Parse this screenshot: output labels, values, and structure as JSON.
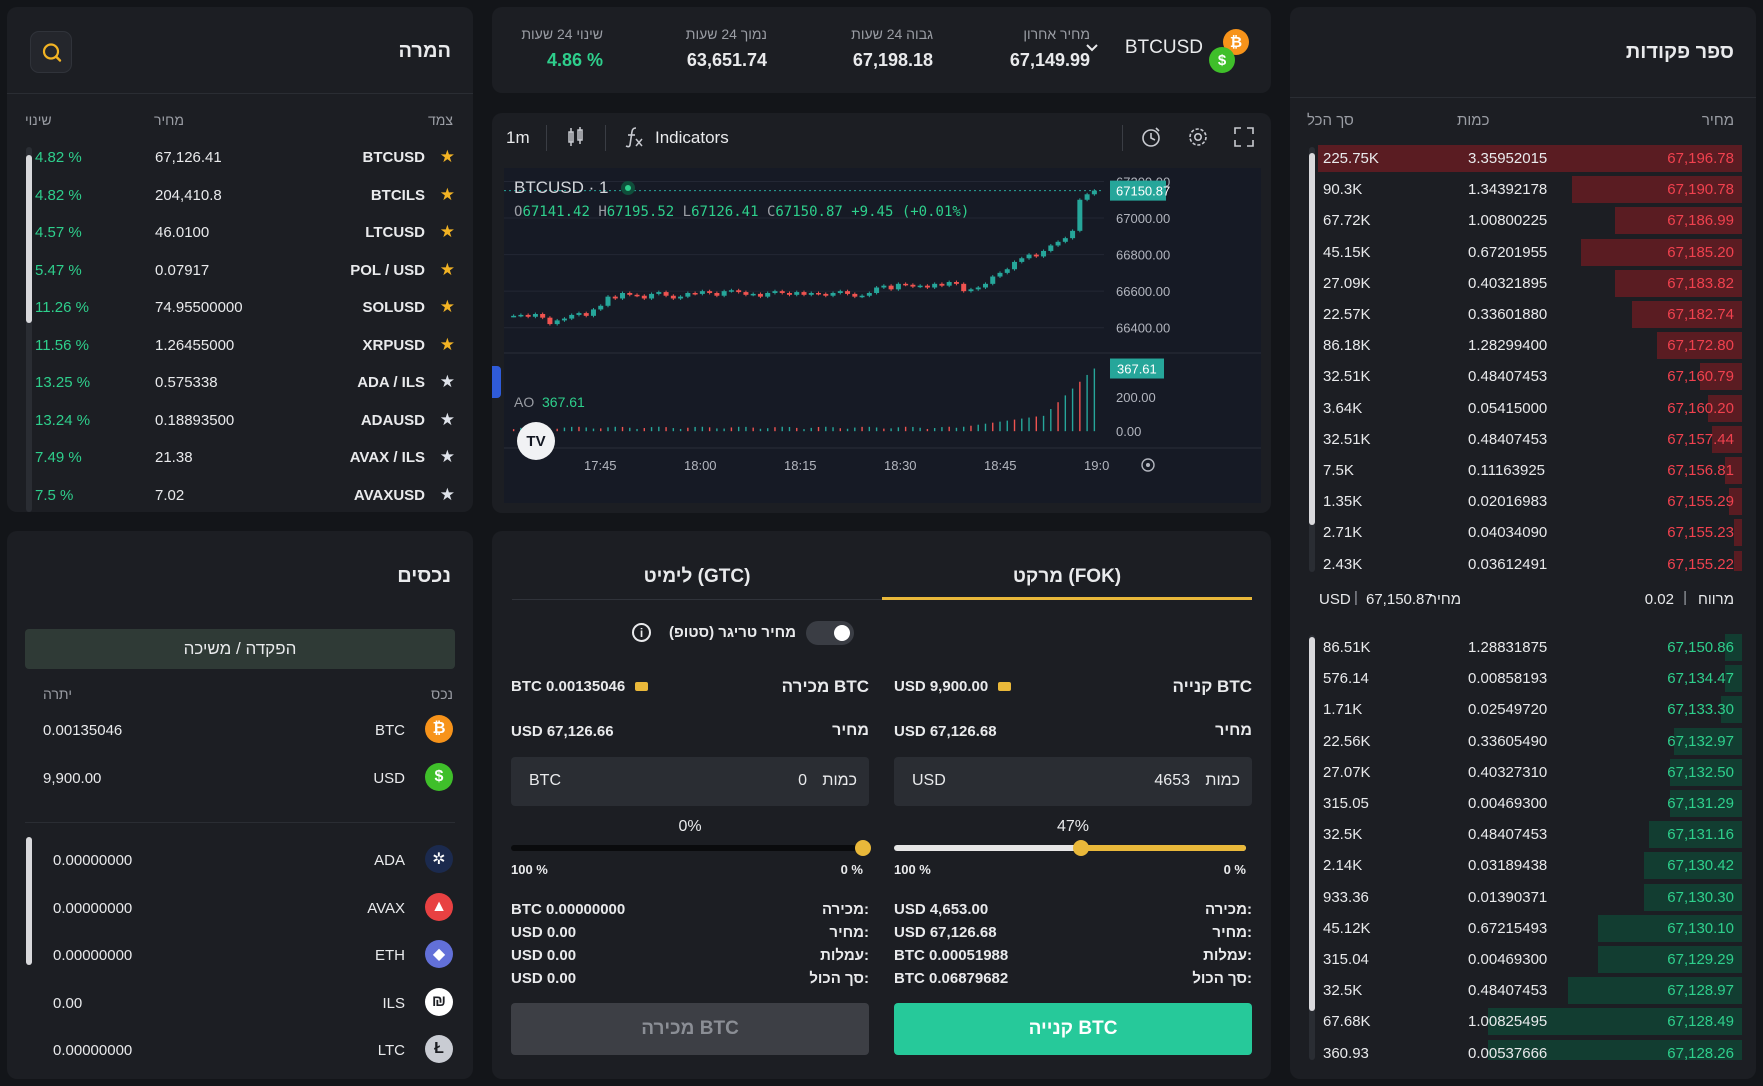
{
  "watchlist": {
    "title": "המרה",
    "col_pair": "צמד",
    "col_price": "מחיר",
    "col_change": "שינוי",
    "rows": [
      {
        "pair": "BTCUSD",
        "price": "67,126.41",
        "change": "4.82 %",
        "fav": true
      },
      {
        "pair": "BTCILS",
        "price": "204,410.8",
        "change": "4.82 %",
        "fav": true
      },
      {
        "pair": "LTCUSD",
        "price": "46.0100",
        "change": "4.57 %",
        "fav": true
      },
      {
        "pair": "POL / USD",
        "price": "0.07917",
        "change": "5.47 %",
        "fav": true
      },
      {
        "pair": "SOLUSD",
        "price": "74.95500000",
        "change": "11.26 %",
        "fav": true
      },
      {
        "pair": "XRPUSD",
        "price": "1.26455000",
        "change": "11.56 %",
        "fav": true
      },
      {
        "pair": "ADA / ILS",
        "price": "0.575338",
        "change": "13.25 %",
        "fav": false
      },
      {
        "pair": "ADAUSD",
        "price": "0.18893500",
        "change": "13.24 %",
        "fav": false
      },
      {
        "pair": "AVAX / ILS",
        "price": "21.38",
        "change": "7.49 %",
        "fav": false
      },
      {
        "pair": "AVAXUSD",
        "price": "7.02",
        "change": "7.5 %",
        "fav": false
      }
    ]
  },
  "assets": {
    "title": "נכסים",
    "deposit_label": "הפקדה / משיכה",
    "col_asset": "נכס",
    "col_balance": "יתרה",
    "main": [
      {
        "symbol": "BTC",
        "balance": "0.00135046",
        "icon": "bitcoin-icon",
        "color": "#f7931a",
        "glyph": "₿"
      },
      {
        "symbol": "USD",
        "balance": "9,900.00",
        "icon": "dollar-icon",
        "color": "#3fbf2a",
        "glyph": "$"
      }
    ],
    "others": [
      {
        "symbol": "ADA",
        "balance": "0.00000000",
        "icon": "cardano-icon",
        "color": "#1b2a4e",
        "glyph": "✲"
      },
      {
        "symbol": "AVAX",
        "balance": "0.00000000",
        "icon": "avalanche-icon",
        "color": "#e84142",
        "glyph": "▲"
      },
      {
        "symbol": "ETH",
        "balance": "0.00000000",
        "icon": "ethereum-icon",
        "color": "#6270d8",
        "glyph": "◆"
      },
      {
        "symbol": "ILS",
        "balance": "0.00",
        "icon": "shekel-icon",
        "color": "#ffffff",
        "glyph": "₪"
      },
      {
        "symbol": "LTC",
        "balance": "0.00000000",
        "icon": "litecoin-icon",
        "color": "#c9ccd3",
        "glyph": "Ł"
      }
    ]
  },
  "ticker": {
    "symbol": "BTCUSD",
    "last_label": "מחיר אחרון",
    "last_value": "67,149.99",
    "high_label": "גבוה 24 שעות",
    "high_value": "67,198.18",
    "low_label": "נמוך 24 שעות",
    "low_value": "63,651.74",
    "change_label": "שינוי 24 שעות",
    "change_value": "4.86 %"
  },
  "chart_toolbar": {
    "interval": "1m",
    "indicators": "Indicators"
  },
  "chart": {
    "symbol_label": "BTCUSD · 1",
    "ohlc": {
      "o_label": "O",
      "o": "67141.42",
      "h_label": "H",
      "h": "67195.52",
      "l_label": "L",
      "l": "67126.41",
      "c_label": "C",
      "c": "67150.87",
      "chg": "+9.45 (+0.01%)"
    },
    "last_price_tag": "67150.87",
    "price_ticks": [
      "67200.00",
      "67000.00",
      "66800.00",
      "66600.00",
      "66400.00"
    ],
    "osc_label": "AO",
    "osc_value": "367.61",
    "osc_tag": "367.61",
    "osc_ticks": [
      "200.00",
      "0.00"
    ],
    "time_ticks": [
      "17:45",
      "18:00",
      "18:15",
      "18:30",
      "18:45",
      "19:0"
    ],
    "logo": "TV"
  },
  "chart_data": {
    "type": "candlestick",
    "x_range": [
      "17:33",
      "18:52"
    ],
    "y_range": [
      66300,
      67230
    ],
    "close": [
      66465,
      66470,
      66460,
      66475,
      66455,
      66420,
      66440,
      66450,
      66470,
      66480,
      66465,
      66500,
      66520,
      66570,
      66560,
      66590,
      66580,
      66575,
      66560,
      66585,
      66595,
      66575,
      66560,
      66570,
      66590,
      66585,
      66600,
      66590,
      66575,
      66600,
      66605,
      66595,
      66580,
      66585,
      66570,
      66590,
      66600,
      66590,
      66580,
      66595,
      66580,
      66590,
      66585,
      66575,
      66590,
      66600,
      66585,
      66570,
      66575,
      66590,
      66620,
      66630,
      66610,
      66640,
      66635,
      66625,
      66630,
      66620,
      66640,
      66630,
      66650,
      66640,
      66600,
      66610,
      66620,
      66640,
      66680,
      66700,
      66720,
      66760,
      66780,
      66800,
      66790,
      66820,
      66850,
      66870,
      66890,
      66930,
      67100,
      67130,
      67150
    ],
    "osc": {
      "name": "AO",
      "last": 367.61,
      "range": [
        -40,
        400
      ]
    }
  },
  "order": {
    "tab_market": "מרקט (FOK)",
    "tab_limit": "לימיט (GTC)",
    "trigger_label": "מחיר טריגר (סטופ)",
    "buy": {
      "title": "קנייה BTC",
      "balance": "USD 9,900.00",
      "price_label": "מחיר",
      "price_value": "USD 67,126.68",
      "qty_label": "כמות",
      "qty_value": "4653",
      "qty_unit": "USD",
      "percent": "47%",
      "slider_fraction": 0.47,
      "min_label": "0 %",
      "max_label": "100 %",
      "sum_sell_label": "מכירה:",
      "sum_sell_value": "USD 4,653.00",
      "sum_price_label": "מחיר:",
      "sum_price_value": "USD 67,126.68",
      "sum_fee_label": "עמלות:",
      "sum_fee_value": "BTC 0.00051988",
      "sum_total_label": "סך הכול:",
      "sum_total_value": "BTC 0.06879682",
      "button": "קנייה BTC"
    },
    "sell": {
      "title": "מכירה BTC",
      "balance": "BTC 0.00135046",
      "price_label": "מחיר",
      "price_value": "USD 67,126.66",
      "qty_label": "כמות",
      "qty_value": "0",
      "qty_unit": "BTC",
      "percent": "0%",
      "slider_fraction": 0,
      "min_label": "0 %",
      "max_label": "100 %",
      "sum_sell_label": "מכירה:",
      "sum_sell_value": "BTC 0.00000000",
      "sum_price_label": "מחיר:",
      "sum_price_value": "USD 0.00",
      "sum_fee_label": "עמלות:",
      "sum_fee_value": "USD 0.00",
      "sum_total_label": "סך הכול:",
      "sum_total_value": "USD 0.00",
      "button": "מכירה BTC"
    }
  },
  "orderbook": {
    "title": "ספר פקודות",
    "col_price": "מחיר",
    "col_qty": "כמות",
    "col_total": "סך הכל",
    "spread_label": "מרווח",
    "spread_value": "0.02",
    "mid_label": "מחיר",
    "mid_value": "67,150.87",
    "mid_currency": "USD",
    "asks": [
      {
        "price": "67,196.78",
        "qty": "3.35952015",
        "total": "225.75K",
        "depth": 1.0
      },
      {
        "price": "67,190.78",
        "qty": "1.34392178",
        "total": "90.3K",
        "depth": 0.4
      },
      {
        "price": "67,186.99",
        "qty": "1.00800225",
        "total": "67.72K",
        "depth": 0.3
      },
      {
        "price": "67,185.20",
        "qty": "0.67201955",
        "total": "45.15K",
        "depth": 0.38
      },
      {
        "price": "67,183.82",
        "qty": "0.40321895",
        "total": "27.09K",
        "depth": 0.3
      },
      {
        "price": "67,182.74",
        "qty": "0.33601880",
        "total": "22.57K",
        "depth": 0.26
      },
      {
        "price": "67,172.80",
        "qty": "1.28299400",
        "total": "86.18K",
        "depth": 0.2
      },
      {
        "price": "67,160.79",
        "qty": "0.48407453",
        "total": "32.51K",
        "depth": 0.1
      },
      {
        "price": "67,160.20",
        "qty": "0.05415000",
        "total": "3.64K",
        "depth": 0.08
      },
      {
        "price": "67,157.44",
        "qty": "0.48407453",
        "total": "32.51K",
        "depth": 0.07
      },
      {
        "price": "67,156.81",
        "qty": "0.11163925",
        "total": "7.5K",
        "depth": 0.04
      },
      {
        "price": "67,155.29",
        "qty": "0.02016983",
        "total": "1.35K",
        "depth": 0.03
      },
      {
        "price": "67,155.23",
        "qty": "0.04034090",
        "total": "2.71K",
        "depth": 0.02
      },
      {
        "price": "67,155.22",
        "qty": "0.03612491",
        "total": "2.43K",
        "depth": 0.02
      }
    ],
    "bids": [
      {
        "price": "67,150.86",
        "qty": "1.28831875",
        "total": "86.51K",
        "depth": 0.04
      },
      {
        "price": "67,134.47",
        "qty": "0.00858193",
        "total": "576.14",
        "depth": 0.04
      },
      {
        "price": "67,133.30",
        "qty": "0.02549720",
        "total": "1.71K",
        "depth": 0.05
      },
      {
        "price": "67,132.97",
        "qty": "0.33605490",
        "total": "22.56K",
        "depth": 0.16
      },
      {
        "price": "67,132.50",
        "qty": "0.40327310",
        "total": "27.07K",
        "depth": 0.17
      },
      {
        "price": "67,131.29",
        "qty": "0.00469300",
        "total": "315.05",
        "depth": 0.17
      },
      {
        "price": "67,131.16",
        "qty": "0.48407453",
        "total": "32.5K",
        "depth": 0.22
      },
      {
        "price": "67,130.42",
        "qty": "0.03189438",
        "total": "2.14K",
        "depth": 0.23
      },
      {
        "price": "67,130.30",
        "qty": "0.01390371",
        "total": "933.36",
        "depth": 0.23
      },
      {
        "price": "67,130.10",
        "qty": "0.67215493",
        "total": "45.12K",
        "depth": 0.34
      },
      {
        "price": "67,129.29",
        "qty": "0.00469300",
        "total": "315.04",
        "depth": 0.34
      },
      {
        "price": "67,128.97",
        "qty": "0.48407453",
        "total": "32.5K",
        "depth": 0.41
      },
      {
        "price": "67,128.49",
        "qty": "1.00825495",
        "total": "67.68K",
        "depth": 0.6
      },
      {
        "price": "67,128.26",
        "qty": "0.00537666",
        "total": "360.93",
        "depth": 0.6
      }
    ],
    "colors": {
      "ask_bar": "#5a1c22",
      "bid_bar": "#123d31",
      "ask_text": "#f0414e",
      "bid_text": "#2ecf8c"
    }
  }
}
